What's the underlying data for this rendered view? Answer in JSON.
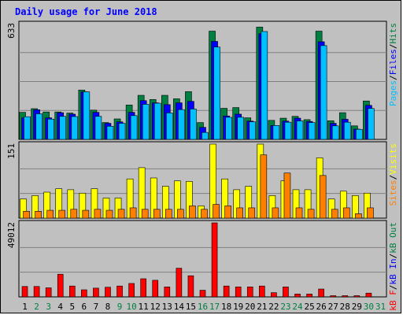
{
  "chart_data": {
    "type": "bar",
    "title": "Daily usage for June 2018",
    "categories": [
      "1",
      "2",
      "3",
      "4",
      "5",
      "6",
      "7",
      "8",
      "9",
      "10",
      "11",
      "12",
      "13",
      "14",
      "15",
      "16",
      "17",
      "18",
      "19",
      "20",
      "21",
      "22",
      "23",
      "24",
      "25",
      "26",
      "27",
      "28",
      "29",
      "30",
      "31"
    ],
    "weekend_days": [
      "2",
      "3",
      "9",
      "10",
      "16",
      "17",
      "23",
      "24",
      "30",
      "31"
    ],
    "panels": [
      {
        "id": "hits-files-pages",
        "ymax": 633,
        "ymax_label": "633",
        "axis_title": [
          "Pages",
          "/",
          "Files",
          "/",
          "Hits"
        ],
        "axis_title_colors": [
          "#00c0ff",
          "#000000",
          "#0000ff",
          "#000000",
          "#008040"
        ],
        "series": [
          {
            "name": "Hits",
            "color": "#008040",
            "values": [
              148,
              168,
              150,
              150,
              144,
              270,
              160,
              92,
              112,
              188,
              241,
              218,
              241,
              222,
              261,
              92,
              592,
              170,
              174,
              118,
              614,
              104,
              116,
              126,
              108,
              592,
              102,
              146,
              74,
              210,
              0
            ]
          },
          {
            "name": "Files",
            "color": "#0000ff",
            "values": [
              118,
              162,
              118,
              146,
              138,
              260,
              148,
              88,
              96,
              148,
              212,
              200,
              190,
              200,
              208,
              66,
              536,
              128,
              138,
              100,
              578,
              76,
              100,
              116,
              98,
              534,
              88,
              110,
              56,
              186,
              0
            ]
          },
          {
            "name": "Pages",
            "color": "#00c0ff",
            "values": [
              124,
              140,
              111,
              126,
              125,
              260,
              126,
              72,
              88,
              130,
              192,
              198,
              145,
              163,
              166,
              38,
              505,
              121,
              121,
              96,
              590,
              76,
              94,
              101,
              92,
              513,
              74,
              94,
              55,
              169,
              0
            ]
          }
        ]
      },
      {
        "id": "visits-sites",
        "ymax": 151,
        "ymax_label": "151",
        "axis_title": [
          "Sites",
          "/",
          "Visits"
        ],
        "axis_title_colors": [
          "#ff8000",
          "#000000",
          "#ffff00"
        ],
        "series": [
          {
            "name": "Visits",
            "color": "#ffff00",
            "values": [
              39,
              46,
              53,
              60,
              58,
              51,
              60,
              41,
              41,
              80,
              103,
              82,
              65,
              76,
              75,
              25,
              151,
              80,
              58,
              65,
              151,
              46,
              76,
              58,
              58,
              123,
              39,
              55,
              46,
              51,
              0
            ]
          },
          {
            "name": "Sites",
            "color": "#ff8000",
            "values": [
              14,
              14,
              16,
              16,
              18,
              16,
              18,
              16,
              18,
              21,
              18,
              18,
              18,
              18,
              25,
              18,
              28,
              25,
              21,
              21,
              129,
              21,
              92,
              21,
              18,
              87,
              18,
              21,
              9,
              21,
              0
            ]
          }
        ]
      },
      {
        "id": "kbytes",
        "ymax": 49012,
        "ymax_label": "49012",
        "axis_title": [
          "kB F",
          "/",
          "kB In",
          "/",
          "kB Out"
        ],
        "axis_title_colors": [
          "#ff0000",
          "#000000",
          "#0000ff",
          "#000000",
          "#008040"
        ],
        "series": [
          {
            "name": "kB F",
            "color": "#ff0000",
            "values": [
              6900,
              6900,
              6000,
              15000,
              7200,
              4700,
              5800,
              6400,
              7200,
              8900,
              12000,
              11000,
              6600,
              19000,
              14000,
              4400,
              49012,
              7200,
              6600,
              6600,
              7200,
              2800,
              6600,
              1900,
              1900,
              5200,
              800,
              800,
              800,
              2500,
              0
            ]
          }
        ]
      }
    ]
  }
}
